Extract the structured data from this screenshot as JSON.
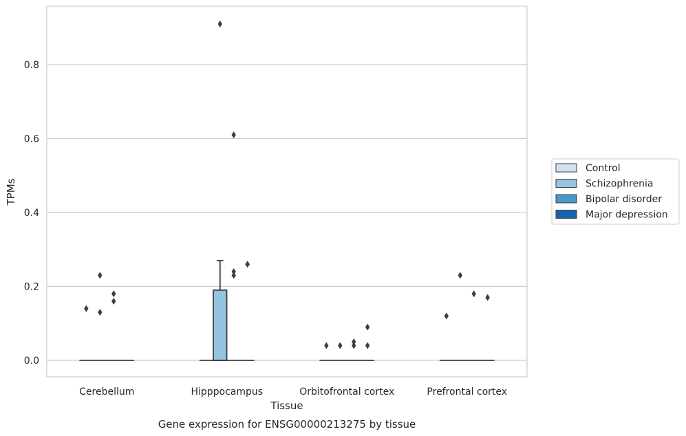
{
  "chart_data": {
    "type": "box",
    "title": "",
    "caption": "Gene expression for ENSG00000213275 by tissue",
    "xlabel": "Tissue",
    "ylabel": "TPMs",
    "ylim": [
      -0.045,
      0.96
    ],
    "yticks": [
      0.0,
      0.2,
      0.4,
      0.6,
      0.8
    ],
    "ytick_labels": [
      "0.0",
      "0.2",
      "0.4",
      "0.6",
      "0.8"
    ],
    "grid": true,
    "legend_position": "right",
    "categories": [
      "Cerebellum",
      "Hipppocampus",
      "Orbitofrontal cortex",
      "Prefrontal cortex"
    ],
    "series": [
      {
        "name": "Control",
        "color": "#d0e1f2"
      },
      {
        "name": "Schizophrenia",
        "color": "#94c4df"
      },
      {
        "name": "Bipolar disorder",
        "color": "#4a98c9"
      },
      {
        "name": "Major depression",
        "color": "#1764ab"
      }
    ],
    "boxes": [
      {
        "category": "Cerebellum",
        "series": "Schizophrenia",
        "q1": 0,
        "median": 0,
        "q3": 0,
        "whislo": 0,
        "whishi": 0,
        "outliers": [
          0.14,
          0.13,
          0.23,
          0.18,
          0.16
        ]
      },
      {
        "category": "Hipppocampus",
        "series": "Schizophrenia",
        "q1": 0,
        "median": 0,
        "q3": 0.19,
        "whislo": 0,
        "whishi": 0.27,
        "outliers": [
          0.91,
          0.61,
          0.24,
          0.23,
          0.26,
          0.26
        ]
      },
      {
        "category": "Orbitofrontal cortex",
        "series": "Schizophrenia",
        "q1": 0,
        "median": 0,
        "q3": 0,
        "whislo": 0,
        "whishi": 0,
        "outliers": [
          0.04,
          0.04,
          0.05,
          0.04,
          0.09,
          0.04
        ]
      },
      {
        "category": "Prefrontal cortex",
        "series": "Schizophrenia",
        "q1": 0,
        "median": 0,
        "q3": 0,
        "whislo": 0,
        "whishi": 0,
        "outliers": [
          0.12,
          0.23,
          0.18,
          0.17
        ]
      }
    ],
    "outlier_groups": [
      {
        "category": "Cerebellum",
        "points": [
          {
            "series": "Control",
            "values": [
              0.14
            ]
          },
          {
            "series": "Schizophrenia",
            "values": [
              0.23,
              0.13
            ]
          },
          {
            "series": "Bipolar disorder",
            "values": [
              0.18,
              0.16
            ]
          }
        ]
      },
      {
        "category": "Hipppocampus",
        "points": [
          {
            "series": "Schizophrenia",
            "values": [
              0.91
            ]
          },
          {
            "series": "Bipolar disorder",
            "values": [
              0.61,
              0.24,
              0.23
            ]
          },
          {
            "series": "Major depression",
            "values": [
              0.26,
              0.26
            ]
          }
        ]
      },
      {
        "category": "Orbitofrontal cortex",
        "points": [
          {
            "series": "Control",
            "values": [
              0.04
            ]
          },
          {
            "series": "Schizophrenia",
            "values": [
              0.04
            ]
          },
          {
            "series": "Bipolar disorder",
            "values": [
              0.05,
              0.04
            ]
          },
          {
            "series": "Major depression",
            "values": [
              0.09,
              0.04
            ]
          }
        ]
      },
      {
        "category": "Prefrontal cortex",
        "points": [
          {
            "series": "Control",
            "values": [
              0.12
            ]
          },
          {
            "series": "Schizophrenia",
            "values": [
              0.23
            ]
          },
          {
            "series": "Bipolar disorder",
            "values": [
              0.18
            ]
          },
          {
            "series": "Major depression",
            "values": [
              0.17
            ]
          }
        ]
      }
    ]
  }
}
